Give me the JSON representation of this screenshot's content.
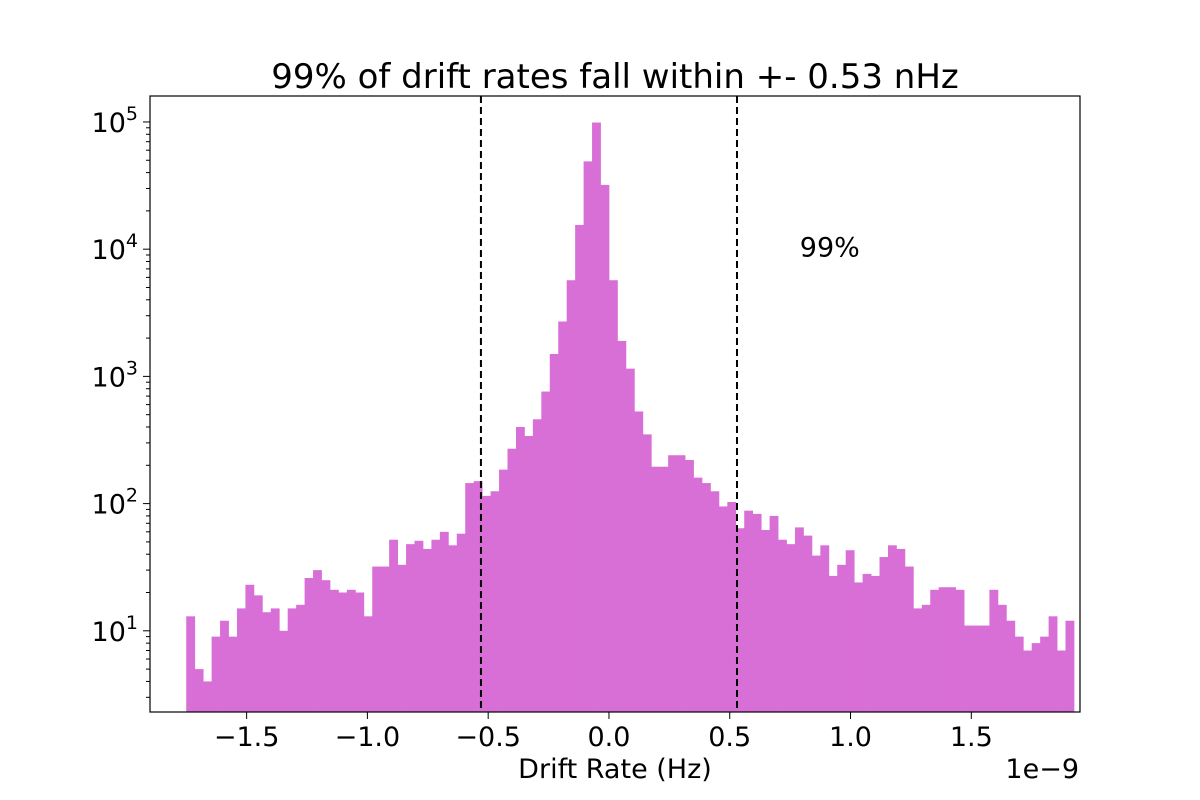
{
  "chart_data": {
    "type": "bar",
    "title": "99% of drift rates fall within +- 0.53 nHz",
    "xlabel": "Drift Rate (Hz)",
    "ylabel": "",
    "x_offset_label": "1e−9",
    "xlim": [
      -1.9,
      1.95
    ],
    "ylim": [
      2.3,
      160000
    ],
    "y_scale": "log",
    "grid": false,
    "bar_color": "#d86fd6",
    "bin_start": -1.75,
    "bin_width": 0.035,
    "values": [
      13,
      5,
      4,
      9,
      12,
      9,
      15,
      23,
      19,
      14,
      15,
      10,
      15,
      16,
      26,
      30,
      25,
      21,
      20,
      21,
      20,
      13,
      32,
      32,
      52,
      33,
      48,
      51,
      44,
      52,
      60,
      47,
      58,
      145,
      150,
      115,
      125,
      185,
      270,
      400,
      340,
      460,
      760,
      1500,
      2700,
      5700,
      15500,
      49000,
      99000,
      32000,
      5700,
      1900,
      1150,
      530,
      350,
      195,
      195,
      240,
      240,
      220,
      160,
      145,
      125,
      95,
      103,
      64,
      88,
      83,
      62,
      80,
      52,
      48,
      65,
      56,
      39,
      47,
      27,
      33,
      43,
      24,
      28,
      27,
      38,
      47,
      44,
      32,
      15,
      16,
      21,
      22,
      22,
      21,
      11,
      11,
      11,
      21,
      16,
      12,
      9,
      7,
      8,
      9,
      13,
      7,
      12
    ],
    "x_ticks": [
      {
        "value": -1.5,
        "label": "−1.5"
      },
      {
        "value": -1.0,
        "label": "−1.0"
      },
      {
        "value": -0.5,
        "label": "−0.5"
      },
      {
        "value": 0.0,
        "label": "0.0"
      },
      {
        "value": 0.5,
        "label": "0.5"
      },
      {
        "value": 1.0,
        "label": "1.0"
      },
      {
        "value": 1.5,
        "label": "1.5"
      }
    ],
    "y_ticks": [
      {
        "value": 10,
        "base": "10",
        "exp": "1"
      },
      {
        "value": 100,
        "base": "10",
        "exp": "2"
      },
      {
        "value": 1000,
        "base": "10",
        "exp": "3"
      },
      {
        "value": 10000,
        "base": "10",
        "exp": "4"
      },
      {
        "value": 100000,
        "base": "10",
        "exp": "5"
      }
    ],
    "vlines": [
      -0.53,
      0.53
    ],
    "annotation": {
      "text": "99%",
      "x": 0.79,
      "y": 10500
    }
  }
}
